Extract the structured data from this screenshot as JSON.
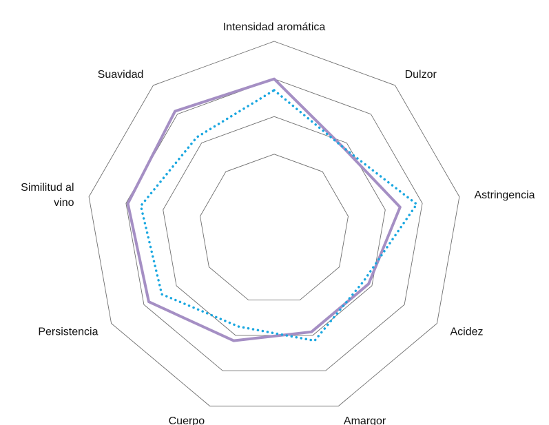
{
  "chart_data": {
    "type": "radar",
    "axes": [
      {
        "label": "Intensidad aromática",
        "lines": [
          "Intensidad aromática"
        ]
      },
      {
        "label": "Dulzor",
        "lines": [
          "Dulzor"
        ]
      },
      {
        "label": "Astringencia",
        "lines": [
          "Astringencia"
        ]
      },
      {
        "label": "Acidez",
        "lines": [
          "Acidez"
        ]
      },
      {
        "label": "Amargor",
        "lines": [
          "Amargor"
        ]
      },
      {
        "label": "Cuerpo",
        "lines": [
          "Cuerpo"
        ]
      },
      {
        "label": "Persistencia",
        "lines": [
          "Persistencia"
        ]
      },
      {
        "label": "Similitud al vino",
        "lines": [
          "Similitud al",
          "vino"
        ]
      },
      {
        "label": "Suavidad",
        "lines": [
          "Suavidad"
        ]
      }
    ],
    "range": [
      0,
      10
    ],
    "grid_levels": [
      4,
      6,
      8,
      10
    ],
    "legend": "none",
    "series": [
      {
        "color": "#a58fc4",
        "style": "solid",
        "values": [
          8,
          5.7,
          6.8,
          5.8,
          5.8,
          6.3,
          7.7,
          7.9,
          8.2
        ]
      },
      {
        "color": "#1aa7e0",
        "style": "dotted",
        "values": [
          7.4,
          5.7,
          7.7,
          5.5,
          6.3,
          5.5,
          6.9,
          7.2,
          6.4
        ]
      }
    ]
  }
}
